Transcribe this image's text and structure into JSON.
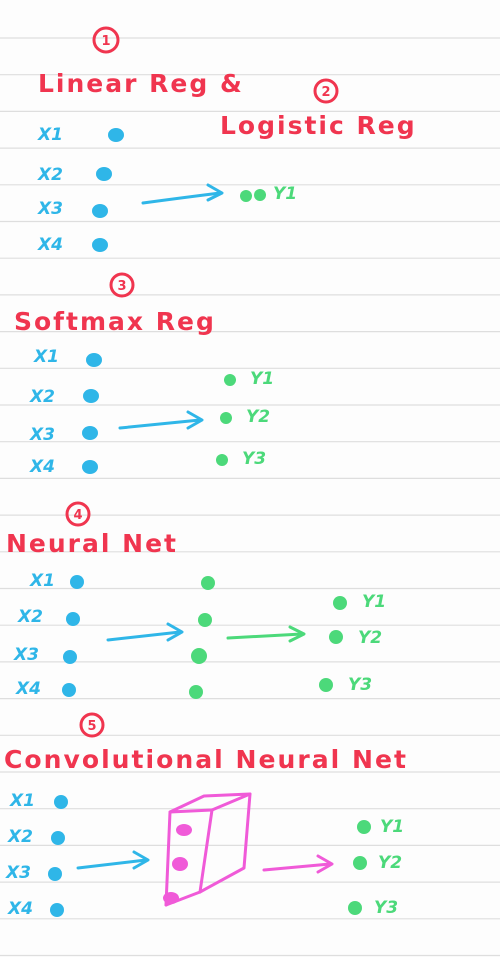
{
  "colors": {
    "title": "#f0354f",
    "input": "#2fb6e8",
    "output": "#4cd97a",
    "conv": "#f05ad8",
    "rule": "#dedede",
    "paper": "#fdfdfd"
  },
  "sections": [
    {
      "number": "1",
      "title": "Linear Reg &",
      "second_number": "2",
      "second_title": "Logistic Reg",
      "inputs": [
        "X1",
        "X2",
        "X3",
        "X4"
      ],
      "outputs": [
        "Y1"
      ]
    },
    {
      "number": "3",
      "title": "Softmax Reg",
      "inputs": [
        "X1",
        "X2",
        "X3",
        "X4"
      ],
      "outputs": [
        "Y1",
        "Y2",
        "Y3"
      ]
    },
    {
      "number": "4",
      "title": "Neural Net",
      "inputs": [
        "X1",
        "X2",
        "X3",
        "X4"
      ],
      "outputs": [
        "Y1",
        "Y2",
        "Y3"
      ]
    },
    {
      "number": "5",
      "title": "Convolutional Neural Net",
      "inputs": [
        "X1",
        "X2",
        "X3",
        "X4"
      ],
      "outputs": [
        "Y1",
        "Y2",
        "Y3"
      ]
    }
  ]
}
